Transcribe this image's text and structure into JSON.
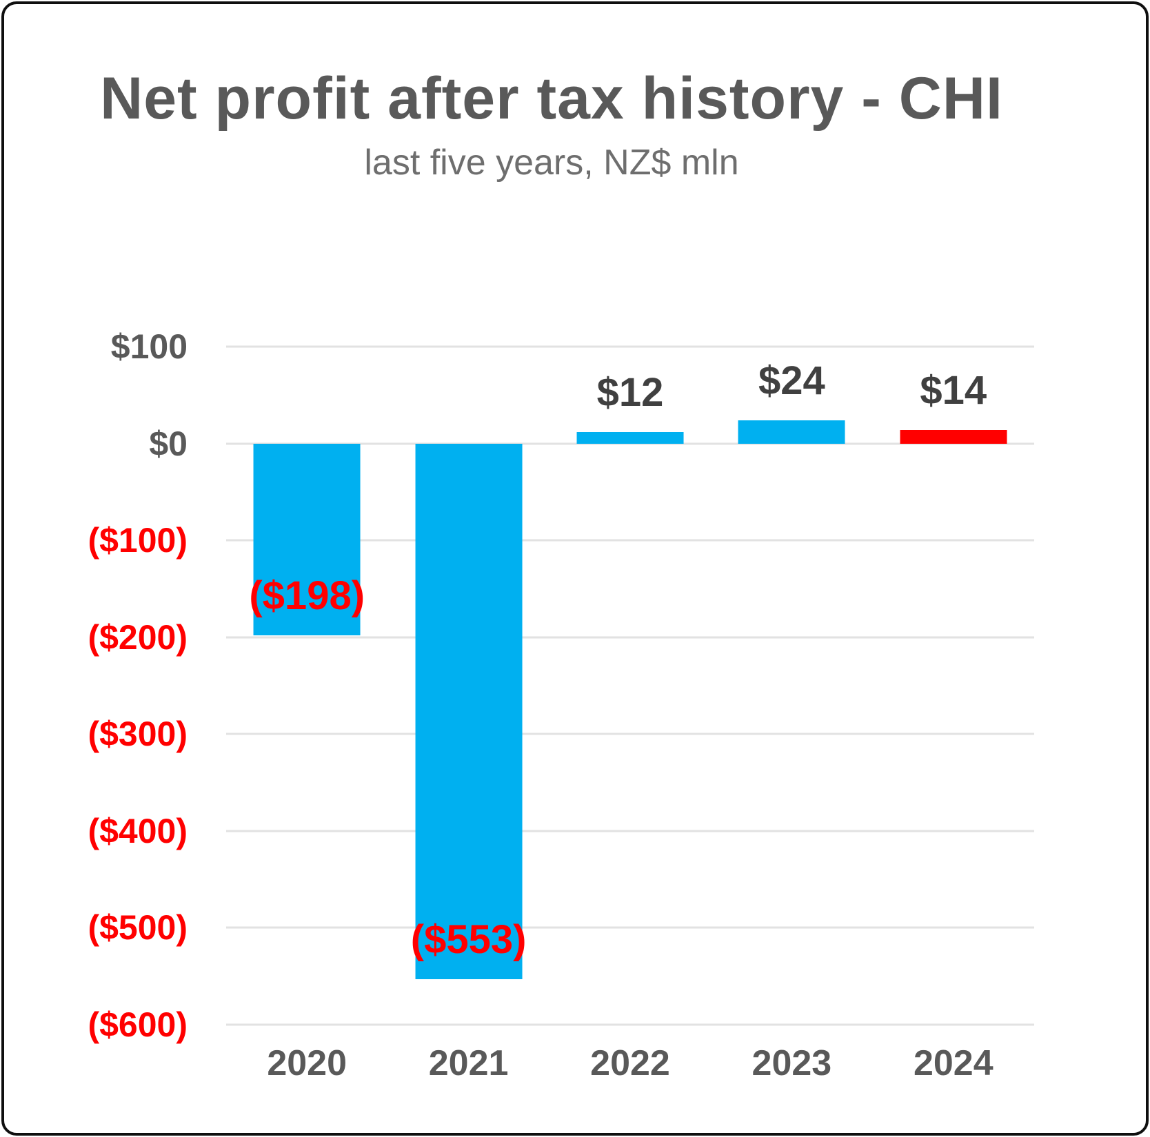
{
  "chart_data": {
    "type": "bar",
    "title": "Net profit after tax history - CHI",
    "subtitle": "last five years, NZ$ mln",
    "categories": [
      "2020",
      "2021",
      "2022",
      "2023",
      "2024"
    ],
    "values": [
      -198,
      -553,
      12,
      24,
      14
    ],
    "data_labels": [
      "($198)",
      "($553)",
      "$12",
      "$24",
      "$14"
    ],
    "bar_colors": [
      "#00B0F0",
      "#00B0F0",
      "#00B0F0",
      "#00B0F0",
      "#FF0000"
    ],
    "label_colors": [
      "#FF0000",
      "#FF0000",
      "#404040",
      "#404040",
      "#404040"
    ],
    "ylim": [
      -600,
      100
    ],
    "grid": true,
    "legend": "none",
    "yticks": [
      {
        "label": "$100",
        "value": 100,
        "color": "#595959"
      },
      {
        "label": "$0",
        "value": 0,
        "color": "#595959"
      },
      {
        "label": "($100)",
        "value": -100,
        "color": "#FF0000"
      },
      {
        "label": "($200)",
        "value": -200,
        "color": "#FF0000"
      },
      {
        "label": "($300)",
        "value": -300,
        "color": "#FF0000"
      },
      {
        "label": "($400)",
        "value": -400,
        "color": "#FF0000"
      },
      {
        "label": "($500)",
        "value": -500,
        "color": "#FF0000"
      },
      {
        "label": "($600)",
        "value": -600,
        "color": "#FF0000"
      }
    ],
    "colors": {
      "positive_bar": "#00B0F0",
      "highlight_bar": "#FF0000",
      "negative_text": "#FF0000",
      "axis_text": "#595959",
      "value_text": "#404040",
      "gridline": "#E2E2E2"
    }
  }
}
